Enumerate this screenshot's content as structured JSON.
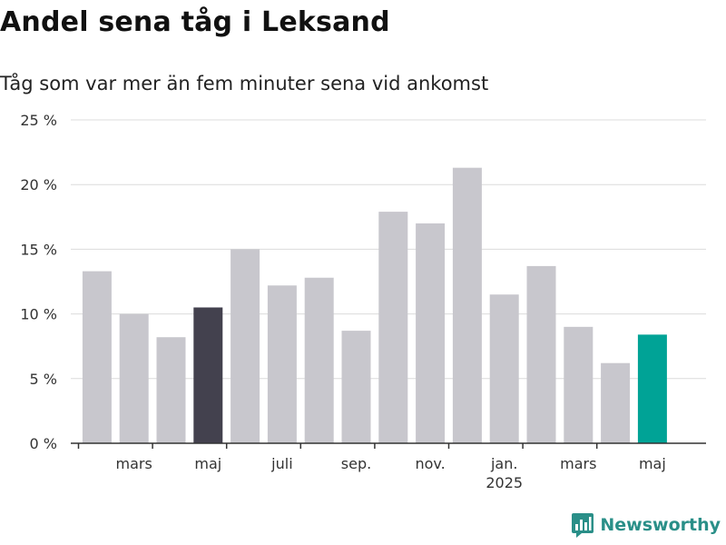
{
  "title": "Andel sena tåg i Leksand",
  "subtitle": "Tåg som var mer än fem minuter sena vid ankomst",
  "brand": {
    "name": "Newsworthy",
    "color": "#2a8f88"
  },
  "colors": {
    "bar_default": "#c8c7cd",
    "bar_highlight_dark": "#43414e",
    "bar_highlight_teal": "#00a396",
    "grid": "#dcdcdc",
    "axis": "#333333"
  },
  "chart_data": {
    "type": "bar",
    "title": "Andel sena tåg i Leksand",
    "subtitle": "Tåg som var mer än fem minuter sena vid ankomst",
    "unit": "%",
    "ylim": [
      0,
      25
    ],
    "yticks": [
      0,
      5,
      10,
      15,
      20,
      25
    ],
    "ytick_labels": [
      "0 %",
      "5 %",
      "10 %",
      "15 %",
      "20 %",
      "25 %"
    ],
    "grid": true,
    "categories": [
      "2024-02",
      "2024-03",
      "2024-04",
      "2024-05",
      "2024-06",
      "2024-07",
      "2024-08",
      "2024-09",
      "2024-10",
      "2024-11",
      "2024-12",
      "2025-01",
      "2025-02",
      "2025-03",
      "2025-04",
      "2025-05"
    ],
    "values": [
      13.3,
      10.0,
      8.2,
      10.5,
      15.0,
      12.2,
      12.8,
      8.7,
      17.9,
      17.0,
      21.3,
      11.5,
      13.7,
      9.0,
      6.2,
      8.4
    ],
    "highlight": {
      "2024-05": "dark",
      "2025-05": "teal"
    },
    "xtick_labels": [
      {
        "category": "2024-03",
        "label": "mars",
        "sub": ""
      },
      {
        "category": "2024-05",
        "label": "maj",
        "sub": ""
      },
      {
        "category": "2024-07",
        "label": "juli",
        "sub": ""
      },
      {
        "category": "2024-09",
        "label": "sep.",
        "sub": ""
      },
      {
        "category": "2024-11",
        "label": "nov.",
        "sub": ""
      },
      {
        "category": "2025-01",
        "label": "jan.",
        "sub": "2025"
      },
      {
        "category": "2025-03",
        "label": "mars",
        "sub": ""
      },
      {
        "category": "2025-05",
        "label": "maj",
        "sub": ""
      }
    ]
  }
}
